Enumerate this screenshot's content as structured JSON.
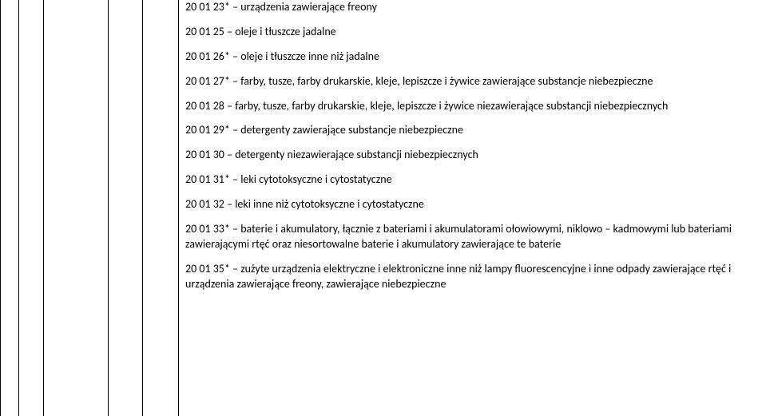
{
  "entries": [
    {
      "code": "20 01 23*",
      "desc": "– urządzenia zawierające freony"
    },
    {
      "code": "20 01 25",
      "desc": "– oleje i tłuszcze jadalne"
    },
    {
      "code": "20 01 26*",
      "desc": "– oleje i tłuszcze inne niż jadalne"
    },
    {
      "code": "20 01 27*",
      "desc": "– farby, tusze, farby drukarskie, kleje, lepiszcze i żywice zawierające substancje  niebezpieczne"
    },
    {
      "code": "20 01 28",
      "desc": "– farby, tusze, farby drukarskie, kleje, lepiszcze i żywice niezawierające substancji niebezpiecznych"
    },
    {
      "code": "20 01 29*",
      "desc": "– detergenty zawierające substancje niebezpieczne"
    },
    {
      "code": "20 01 30",
      "desc": "– detergenty  niezawierające substancji niebezpiecznych"
    },
    {
      "code": "20 01 31*",
      "desc": "– leki cytotoksyczne i cytostatyczne"
    },
    {
      "code": "20 01 32",
      "desc": "– leki inne niż cytotoksyczne i cytostatyczne"
    },
    {
      "code": "20 01 33*",
      "desc": "– baterie i akumulatory, łącznie z bateriami i akumulatorami ołowiowymi, niklowo – kadmowymi lub bateriami zawierającymi rtęć oraz niesortowalne baterie i akumulatory zawierające te baterie"
    },
    {
      "code": "20 01 35*",
      "desc": "– zużyte urządzenia elektryczne i elektroniczne inne niż lampy fluorescencyjne i inne odpady zawierające rtęć i urządzenia zawierające freony, zawierające niebezpieczne"
    }
  ]
}
